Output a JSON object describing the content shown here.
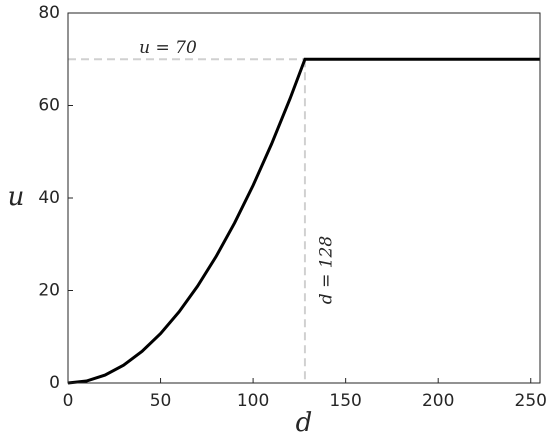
{
  "chart_data": {
    "type": "line",
    "x_label": "d",
    "y_label": "u",
    "x": [
      0,
      10,
      20,
      30,
      40,
      50,
      60,
      70,
      80,
      90,
      100,
      110,
      120,
      128,
      160,
      200,
      255
    ],
    "values": [
      0,
      0.43,
      1.71,
      3.84,
      6.84,
      10.68,
      15.38,
      20.94,
      27.34,
      34.61,
      42.72,
      51.7,
      61.52,
      70,
      70,
      70,
      70
    ],
    "color": "#000000",
    "xlim": [
      0,
      255
    ],
    "ylim": [
      0,
      80
    ],
    "xticks": [
      0,
      50,
      100,
      150,
      200,
      250
    ],
    "yticks": [
      0,
      20,
      40,
      60,
      80
    ],
    "reference_lines": {
      "y": 70,
      "x": 128,
      "color": "#d0d0d0"
    },
    "annotations": [
      "u = 70",
      "d = 128"
    ]
  }
}
